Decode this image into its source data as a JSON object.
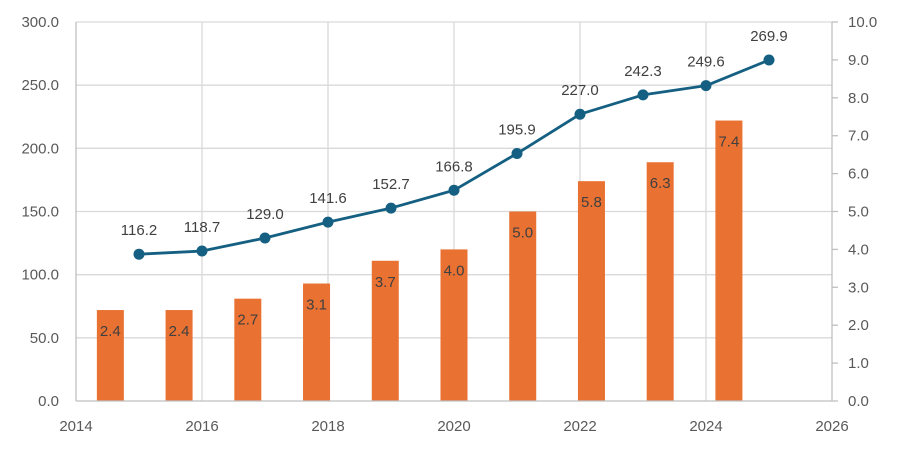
{
  "chart_data": {
    "type": "bar+line",
    "title": "",
    "colors": {
      "bar": "#E97132",
      "line": "#156082",
      "grid": "#D9D9D9",
      "axis": "#BFBFBF",
      "text": "#404040"
    },
    "x_axis": {
      "ticks": [
        "2014",
        "2016",
        "2018",
        "2020",
        "2022",
        "2024",
        "2026"
      ],
      "range": [
        2014,
        2026
      ]
    },
    "y_left": {
      "ticks": [
        "0.0",
        "50.0",
        "100.0",
        "150.0",
        "200.0",
        "250.0",
        "300.0"
      ],
      "range": [
        0,
        300
      ]
    },
    "y_right": {
      "ticks": [
        "0.0",
        "1.0",
        "2.0",
        "3.0",
        "4.0",
        "5.0",
        "6.0",
        "7.0",
        "8.0",
        "9.0",
        "10.0"
      ],
      "range": [
        0,
        10
      ]
    },
    "grid": true,
    "series": [
      {
        "name": "bars",
        "type": "bar",
        "axis": "right",
        "slots": 11,
        "values": [
          2.4,
          2.4,
          2.7,
          3.1,
          3.7,
          4.0,
          5.0,
          5.8,
          6.3,
          7.4
        ],
        "labels": [
          "2.4",
          "2.4",
          "2.7",
          "3.1",
          "3.7",
          "4.0",
          "5.0",
          "5.8",
          "6.3",
          "7.4"
        ]
      },
      {
        "name": "line",
        "type": "line",
        "axis": "left",
        "x": [
          2015,
          2016,
          2017,
          2018,
          2019,
          2020,
          2021,
          2022,
          2023,
          2024,
          2025
        ],
        "values": [
          116.2,
          118.7,
          129.0,
          141.6,
          152.7,
          166.8,
          195.9,
          227.0,
          242.3,
          249.6,
          269.9
        ],
        "labels": [
          "116.2",
          "118.7",
          "129.0",
          "141.6",
          "152.7",
          "166.8",
          "195.9",
          "227.0",
          "242.3",
          "249.6",
          "269.9"
        ]
      }
    ]
  }
}
